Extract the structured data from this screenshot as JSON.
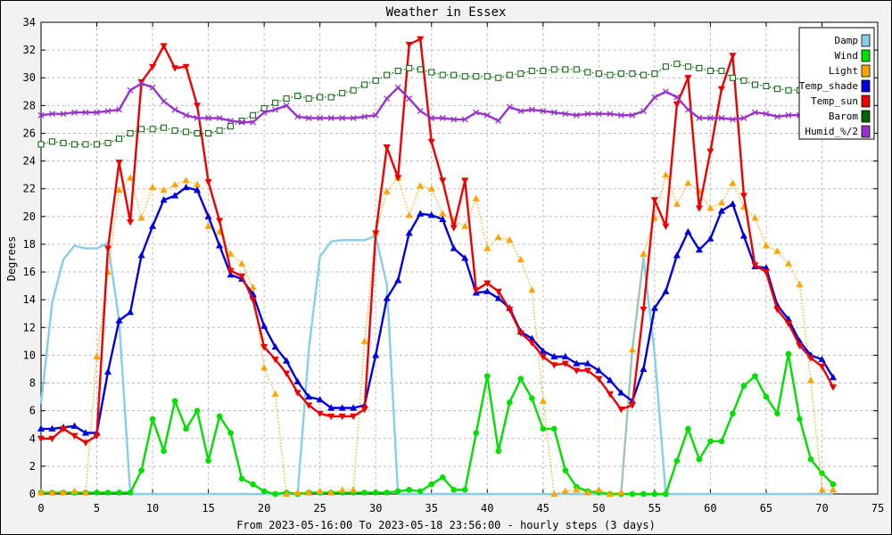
{
  "chart_data": {
    "type": "line",
    "title": "Weather in Essex",
    "xlabel": "From 2023-05-16:00 To 2023-05-18 23:56:00 - hourly steps (3 days)",
    "ylabel": "Degrees",
    "xlim": [
      0,
      75
    ],
    "ylim": [
      0,
      34
    ],
    "xticks": [
      0,
      5,
      10,
      15,
      20,
      25,
      30,
      35,
      40,
      45,
      50,
      55,
      60,
      65,
      70,
      75
    ],
    "yticks": [
      0,
      2,
      4,
      6,
      8,
      10,
      12,
      14,
      16,
      18,
      20,
      22,
      24,
      26,
      28,
      30,
      32,
      34
    ],
    "grid": true,
    "legend_position": "top-right",
    "series": [
      {
        "name": "Damp",
        "color": "#87ceeb",
        "style": "solid",
        "marker": "none",
        "values": [
          6.5,
          13.8,
          16.9,
          17.9,
          17.7,
          17.7,
          18.1,
          12.5,
          0,
          0,
          0,
          0,
          0,
          0,
          0,
          0,
          0,
          0,
          0,
          0,
          0,
          0,
          0,
          0,
          10.4,
          17.1,
          18.2,
          18.3,
          18.3,
          18.3,
          18.6,
          15.1,
          0,
          0,
          0,
          0,
          0,
          0,
          0,
          0,
          0,
          0,
          0,
          0,
          0,
          0,
          0,
          0,
          0,
          0,
          0,
          0,
          0,
          10.4,
          17.0,
          10.1,
          0,
          0,
          0,
          0,
          0,
          0,
          0,
          0,
          0,
          0,
          0,
          0,
          0,
          0,
          0,
          0
        ]
      },
      {
        "name": "Wind",
        "color": "#00e000",
        "style": "solid",
        "marker": "circle",
        "values": [
          0.1,
          0.1,
          0.1,
          0.1,
          0.1,
          0.1,
          0.1,
          0.1,
          0.1,
          1.7,
          5.4,
          3.1,
          6.7,
          4.7,
          6.0,
          2.4,
          5.6,
          4.4,
          1.1,
          0.7,
          0.2,
          0,
          0.1,
          0,
          0.1,
          0.1,
          0.1,
          0.1,
          0.1,
          0.1,
          0.1,
          0.1,
          0.2,
          0.3,
          0.2,
          0.7,
          1.2,
          0.3,
          0.3,
          4.4,
          8.5,
          3.1,
          6.6,
          8.3,
          6.9,
          4.7,
          4.7,
          1.7,
          0.5,
          0.2,
          0.1,
          0,
          0,
          0,
          0,
          0,
          0,
          2.4,
          4.7,
          2.5,
          3.8,
          3.8,
          5.8,
          7.8,
          8.5,
          7.0,
          5.8,
          10.1,
          5.4,
          2.5,
          1.5,
          0.7
        ]
      },
      {
        "name": "Light",
        "color": "#ffa500",
        "style": "dotted",
        "marker": "triangle-up",
        "values": [
          0.1,
          0.1,
          0.1,
          0.2,
          0.1,
          9.9,
          16.0,
          21.9,
          22.8,
          19.9,
          22.1,
          21.9,
          22.3,
          22.6,
          22.3,
          19.3,
          18.9,
          17.3,
          16.6,
          14.9,
          9.1,
          7.2,
          0,
          0.1,
          0.1,
          0.2,
          0.1,
          0.3,
          0.3,
          11.0,
          18.8,
          21.8,
          22.8,
          20.1,
          22.2,
          22.0,
          20.2,
          19.7,
          19.3,
          21.3,
          17.7,
          18.5,
          18.3,
          16.9,
          14.7,
          6.7,
          0,
          0.2,
          0.3,
          0.1,
          0.3,
          0,
          0.1,
          10.4,
          17.3,
          19.9,
          23.0,
          20.9,
          22.4,
          21.8,
          20.6,
          21.0,
          22.4,
          20.7,
          19.9,
          17.9,
          17.5,
          16.6,
          15.1,
          8.2,
          0.3,
          0.3
        ]
      },
      {
        "name": "Temp_shade",
        "color": "#0000dd",
        "style": "solid",
        "marker": "triangle-up",
        "values": [
          4.7,
          4.7,
          4.8,
          4.9,
          4.4,
          4.4,
          8.8,
          12.5,
          13.1,
          17.2,
          19.3,
          21.2,
          21.5,
          22.1,
          21.9,
          20.0,
          17.9,
          15.8,
          15.5,
          14.4,
          12.1,
          10.6,
          9.6,
          8.1,
          7.0,
          6.8,
          6.2,
          6.2,
          6.2,
          6.4,
          10.0,
          14.1,
          15.4,
          18.8,
          20.2,
          20.1,
          19.8,
          17.7,
          17.0,
          14.5,
          14.6,
          14.1,
          13.4,
          11.7,
          11.2,
          10.3,
          9.9,
          9.9,
          9.4,
          9.4,
          8.9,
          8.2,
          7.3,
          6.7,
          9.0,
          13.4,
          14.6,
          17.2,
          18.9,
          17.6,
          18.4,
          20.4,
          20.9,
          18.6,
          16.4,
          16.3,
          13.6,
          12.6,
          11.0,
          10.0,
          9.7,
          8.4
        ]
      },
      {
        "name": "Temp_sun",
        "color": "#ee0000",
        "style": "solid",
        "marker": "triangle-down",
        "values": [
          4.0,
          4.0,
          4.7,
          4.2,
          3.7,
          4.2,
          17.7,
          23.9,
          19.6,
          29.7,
          30.8,
          32.3,
          30.7,
          30.8,
          28.0,
          22.5,
          19.7,
          16.1,
          15.7,
          14.0,
          10.6,
          9.7,
          8.7,
          7.3,
          6.4,
          5.8,
          5.6,
          5.6,
          5.6,
          6.1,
          18.8,
          25.0,
          22.8,
          32.4,
          32.8,
          25.4,
          22.6,
          19.2,
          22.6,
          14.7,
          15.2,
          14.6,
          13.3,
          11.6,
          10.9,
          9.9,
          9.3,
          9.4,
          8.9,
          8.9,
          8.3,
          7.2,
          6.1,
          6.4,
          13.3,
          21.2,
          19.3,
          28.1,
          30.0,
          20.6,
          24.7,
          29.2,
          31.6,
          21.5,
          16.5,
          16.0,
          13.3,
          12.3,
          10.7,
          9.8,
          9.2,
          7.7
        ]
      },
      {
        "name": "Barom",
        "color": "#006400",
        "style": "dotted",
        "marker": "square",
        "values": [
          25.2,
          25.4,
          25.3,
          25.2,
          25.2,
          25.2,
          25.3,
          25.6,
          26.0,
          26.3,
          26.3,
          26.4,
          26.2,
          26.1,
          26.0,
          26.0,
          26.2,
          26.5,
          26.9,
          27.3,
          27.8,
          28.2,
          28.5,
          28.7,
          28.5,
          28.6,
          28.6,
          28.9,
          29.1,
          29.5,
          29.8,
          30.2,
          30.5,
          30.7,
          30.6,
          30.4,
          30.2,
          30.2,
          30.1,
          30.1,
          30.1,
          30.0,
          30.2,
          30.3,
          30.5,
          30.5,
          30.6,
          30.6,
          30.6,
          30.4,
          30.3,
          30.2,
          30.3,
          30.3,
          30.2,
          30.3,
          30.8,
          31.0,
          30.8,
          30.7,
          30.5,
          30.5,
          30.0,
          29.8,
          29.5,
          29.4,
          29.2,
          29.1,
          29.1,
          29.0,
          28.9,
          28.9
        ]
      },
      {
        "name": "Humid_%/2",
        "color": "#9932cc",
        "style": "solid",
        "marker": "x",
        "values": [
          27.3,
          27.4,
          27.4,
          27.5,
          27.5,
          27.5,
          27.6,
          27.7,
          29.1,
          29.6,
          29.3,
          28.3,
          27.7,
          27.3,
          27.1,
          27.1,
          27.1,
          26.9,
          26.8,
          26.8,
          27.5,
          27.7,
          28.0,
          27.2,
          27.1,
          27.1,
          27.1,
          27.1,
          27.1,
          27.2,
          27.3,
          28.5,
          29.3,
          28.5,
          27.6,
          27.1,
          27.1,
          27.0,
          27.0,
          27.5,
          27.3,
          26.9,
          27.9,
          27.6,
          27.7,
          27.6,
          27.5,
          27.4,
          27.3,
          27.4,
          27.4,
          27.4,
          27.3,
          27.3,
          27.6,
          28.6,
          29.0,
          28.6,
          27.7,
          27.1,
          27.1,
          27.1,
          27.0,
          27.1,
          27.5,
          27.4,
          27.2,
          27.3,
          27.3,
          27.3,
          27.3,
          27.3
        ]
      }
    ]
  }
}
